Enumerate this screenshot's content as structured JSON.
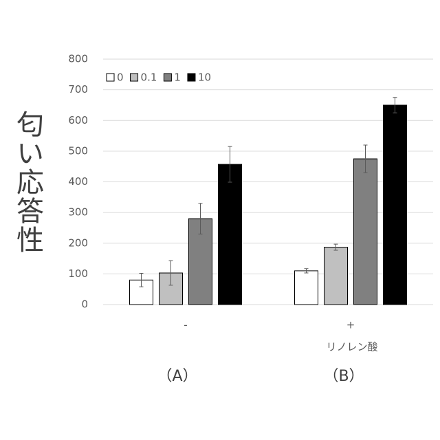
{
  "chart_data": {
    "type": "bar",
    "y_label": "匂い応答性",
    "categories": [
      "-",
      "+"
    ],
    "annotations": [
      "リノレン酸"
    ],
    "panel_labels": [
      "（A）",
      "（B）"
    ],
    "series": [
      {
        "name": "0",
        "color": "#ffffff",
        "values": [
          80,
          110
        ],
        "errors": [
          22,
          7
        ]
      },
      {
        "name": "0.1",
        "color": "#c0c0c0",
        "values": [
          103,
          187
        ],
        "errors": [
          40,
          10
        ]
      },
      {
        "name": "1",
        "color": "#808080",
        "values": [
          280,
          475
        ],
        "errors": [
          50,
          45
        ]
      },
      {
        "name": "10",
        "color": "#000000",
        "values": [
          457,
          650
        ],
        "errors": [
          58,
          25
        ]
      }
    ],
    "ylim": [
      0,
      800
    ],
    "yticks": [
      0,
      100,
      200,
      300,
      400,
      500,
      600,
      700,
      800
    ],
    "grid": true
  }
}
